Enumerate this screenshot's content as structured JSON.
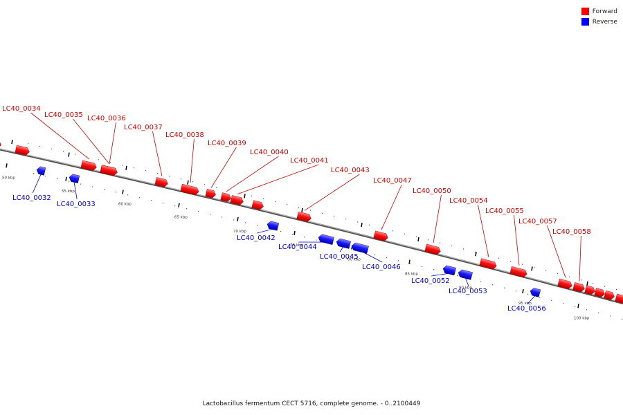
{
  "legend": [
    {
      "label": "Forward",
      "color": "#ff0000"
    },
    {
      "label": "Reverse",
      "color": "#0000ff"
    }
  ],
  "caption": "Lactobacillus fermentum CECT 5716, complete genome. - 0..2100449",
  "ticks": [
    "50 kbp",
    "55 kbp",
    "60 kbp",
    "65 kbp",
    "70 kbp",
    "75 kbp",
    "80 kbp",
    "85 kbp",
    "90 kbp",
    "95 kbp",
    "100 kbp"
  ],
  "forward_genes": [
    "LC40_0034",
    "LC40_0035",
    "LC40_0036",
    "LC40_0037",
    "LC40_0038",
    "LC40_0039",
    "LC40_0040",
    "LC40_0041",
    "LC40_0043",
    "LC40_0047",
    "LC40_0050",
    "LC40_0054",
    "LC40_0055",
    "LC40_0057",
    "LC40_0058"
  ],
  "reverse_genes": [
    "LC40_0032",
    "LC40_0033",
    "LC40_0042",
    "LC40_0044",
    "LC40_0045",
    "LC40_0046",
    "LC40_0052",
    "LC40_0053",
    "LC40_0056"
  ]
}
